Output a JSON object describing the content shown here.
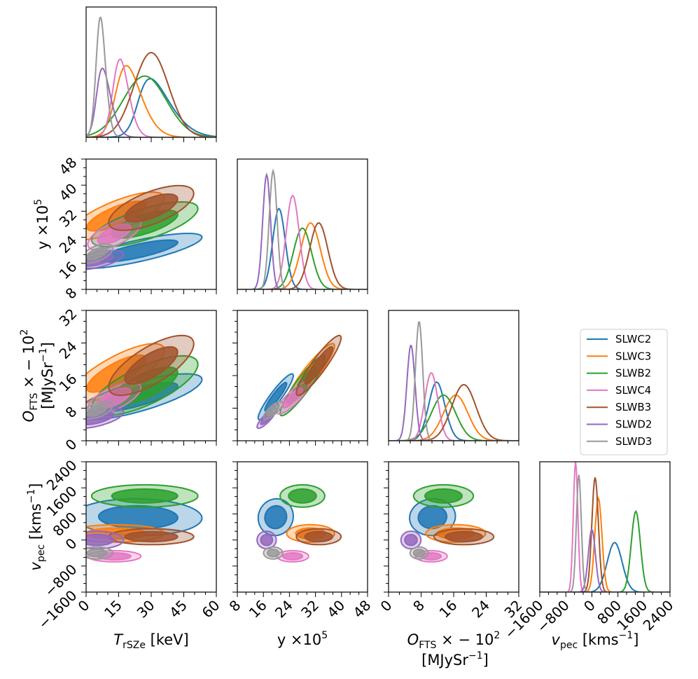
{
  "chart_data": {
    "type": "corner",
    "title": "",
    "parameters": [
      {
        "key": "T",
        "label_main": "T",
        "label_sub": "rSZe",
        "label_rest": " [keV]",
        "range": [
          0,
          60
        ],
        "ticks": [
          0,
          15,
          30,
          45,
          60
        ],
        "tick_labels": [
          "0",
          "15",
          "30",
          "45",
          "60"
        ]
      },
      {
        "key": "y",
        "label_main": "y ×10",
        "label_sup": "5",
        "range": [
          8,
          48
        ],
        "ticks": [
          8,
          16,
          24,
          32,
          40,
          48
        ],
        "tick_labels": [
          "8",
          "16",
          "24",
          "32",
          "40",
          "48"
        ]
      },
      {
        "key": "O",
        "label_main": "O",
        "label_sub": "FTS",
        "label_rest": " × − 10",
        "label_sup": "2",
        "label_line2": "[MJySr",
        "label_line2_sup": "−1",
        "label_line2_end": "]",
        "range": [
          0,
          32
        ],
        "ticks": [
          0,
          8,
          16,
          24,
          32
        ],
        "tick_labels": [
          "0",
          "8",
          "16",
          "24",
          "32"
        ]
      },
      {
        "key": "v",
        "label_main": "v",
        "label_sub": "pec",
        "label_rest": " [kms",
        "label_sup": "−1",
        "label_end": "]",
        "range": [
          -1600,
          2400
        ],
        "ticks": [
          -1600,
          -800,
          0,
          800,
          1600,
          2400
        ],
        "tick_labels": [
          "−1600",
          "−800",
          "0",
          "800",
          "1600",
          "2400"
        ]
      }
    ],
    "legend": {
      "placement": "right-middle",
      "entries": [
        "SLWC2",
        "SLWC3",
        "SLWB2",
        "SLWC4",
        "SLWB3",
        "SLWD2",
        "SLWD3"
      ]
    },
    "series": [
      {
        "name": "SLWC2",
        "color": "#1f77b4",
        "T": {
          "mean": 24,
          "sd": 12,
          "skew": 4
        },
        "y": {
          "mean": 19.8,
          "sd": 2.2,
          "skew": 1
        },
        "O": {
          "mean": 10.8,
          "sd": 2.3,
          "skew": 1
        },
        "v": {
          "mean": 700,
          "sd": 230,
          "skew": 0
        },
        "peak": {
          "T": 0.45,
          "y": 0.62,
          "O": 0.45,
          "v": 0.38
        },
        "corr": {
          "T_y": 0.78,
          "T_O": 0.75,
          "y_O": 0.92,
          "T_v": -0.05,
          "y_v": 0.05,
          "O_v": 0.05
        }
      },
      {
        "name": "SLWC3",
        "color": "#ff7f0e",
        "T": {
          "mean": 14,
          "sd": 9,
          "skew": 3
        },
        "y": {
          "mean": 30.5,
          "sd": 3.0,
          "skew": 0
        },
        "O": {
          "mean": 16.5,
          "sd": 3.0,
          "skew": 0
        },
        "v": {
          "mean": 200,
          "sd": 110,
          "skew": 0
        },
        "peak": {
          "T": 0.55,
          "y": 0.51,
          "O": 0.35,
          "v": 0.72
        },
        "corr": {
          "T_y": 0.75,
          "T_O": 0.78,
          "y_O": 0.92,
          "T_v": 0.0,
          "y_v": 0.0,
          "O_v": 0.0
        }
      },
      {
        "name": "SLWB2",
        "color": "#2ca02c",
        "T": {
          "mean": 27,
          "sd": 10,
          "skew": 0
        },
        "y": {
          "mean": 28.0,
          "sd": 2.8,
          "skew": 0
        },
        "O": {
          "mean": 13.5,
          "sd": 3.0,
          "skew": 0
        },
        "v": {
          "mean": 1350,
          "sd": 140,
          "skew": 0
        },
        "peak": {
          "T": 0.47,
          "y": 0.47,
          "O": 0.35,
          "v": 0.62
        },
        "corr": {
          "T_y": 0.7,
          "T_O": 0.72,
          "y_O": 0.92,
          "T_v": 0.0,
          "y_v": 0.0,
          "O_v": 0.0
        }
      },
      {
        "name": "SLWC4",
        "color": "#e377c2",
        "T": {
          "mean": 13,
          "sd": 5,
          "skew": 2
        },
        "y": {
          "mean": 25.0,
          "sd": 2.0,
          "skew": 0
        },
        "O": {
          "mean": 10.5,
          "sd": 1.6,
          "skew": 0
        },
        "v": {
          "mean": -500,
          "sd": 70,
          "skew": 0
        },
        "peak": {
          "T": 0.6,
          "y": 0.72,
          "O": 0.52,
          "v": 1.0
        },
        "corr": {
          "T_y": 0.65,
          "T_O": 0.65,
          "y_O": 0.85,
          "T_v": 0.0,
          "y_v": 0.0,
          "O_v": 0.0
        }
      },
      {
        "name": "SLWB3",
        "color": "#a0522d",
        "T": {
          "mean": 30,
          "sd": 8,
          "skew": 0
        },
        "y": {
          "mean": 33.0,
          "sd": 2.8,
          "skew": 0
        },
        "O": {
          "mean": 18.5,
          "sd": 3.0,
          "skew": 0
        },
        "v": {
          "mean": 100,
          "sd": 100,
          "skew": 0
        },
        "peak": {
          "T": 0.65,
          "y": 0.51,
          "O": 0.43,
          "v": 0.88
        },
        "corr": {
          "T_y": 0.65,
          "T_O": 0.72,
          "y_O": 0.92,
          "T_v": 0.0,
          "y_v": 0.0,
          "O_v": 0.0
        }
      },
      {
        "name": "SLWD2",
        "color": "#9467bd",
        "T": {
          "mean": 5,
          "sd": 5,
          "skew": 3
        },
        "y": {
          "mean": 17.0,
          "sd": 1.2,
          "skew": 0
        },
        "O": {
          "mean": 5.5,
          "sd": 1.0,
          "skew": 0
        },
        "v": {
          "mean": 0,
          "sd": 110,
          "skew": 0
        },
        "peak": {
          "T": 0.53,
          "y": 0.88,
          "O": 0.73,
          "v": 0.48
        },
        "corr": {
          "T_y": 0.6,
          "T_O": 0.6,
          "y_O": 0.85,
          "T_v": 0.0,
          "y_v": 0.0,
          "O_v": 0.0
        }
      },
      {
        "name": "SLWD3",
        "color": "#999999",
        "T": {
          "mean": 5,
          "sd": 3,
          "skew": 2
        },
        "y": {
          "mean": 19.0,
          "sd": 1.2,
          "skew": 0
        },
        "O": {
          "mean": 7.5,
          "sd": 0.9,
          "skew": 0
        },
        "v": {
          "mean": -400,
          "sd": 75,
          "skew": 0
        },
        "peak": {
          "T": 0.92,
          "y": 0.91,
          "O": 0.91,
          "v": 0.9
        },
        "corr": {
          "T_y": 0.55,
          "T_O": 0.55,
          "y_O": 0.8,
          "T_v": 0.0,
          "y_v": 0.0,
          "O_v": 0.0
        }
      }
    ]
  }
}
